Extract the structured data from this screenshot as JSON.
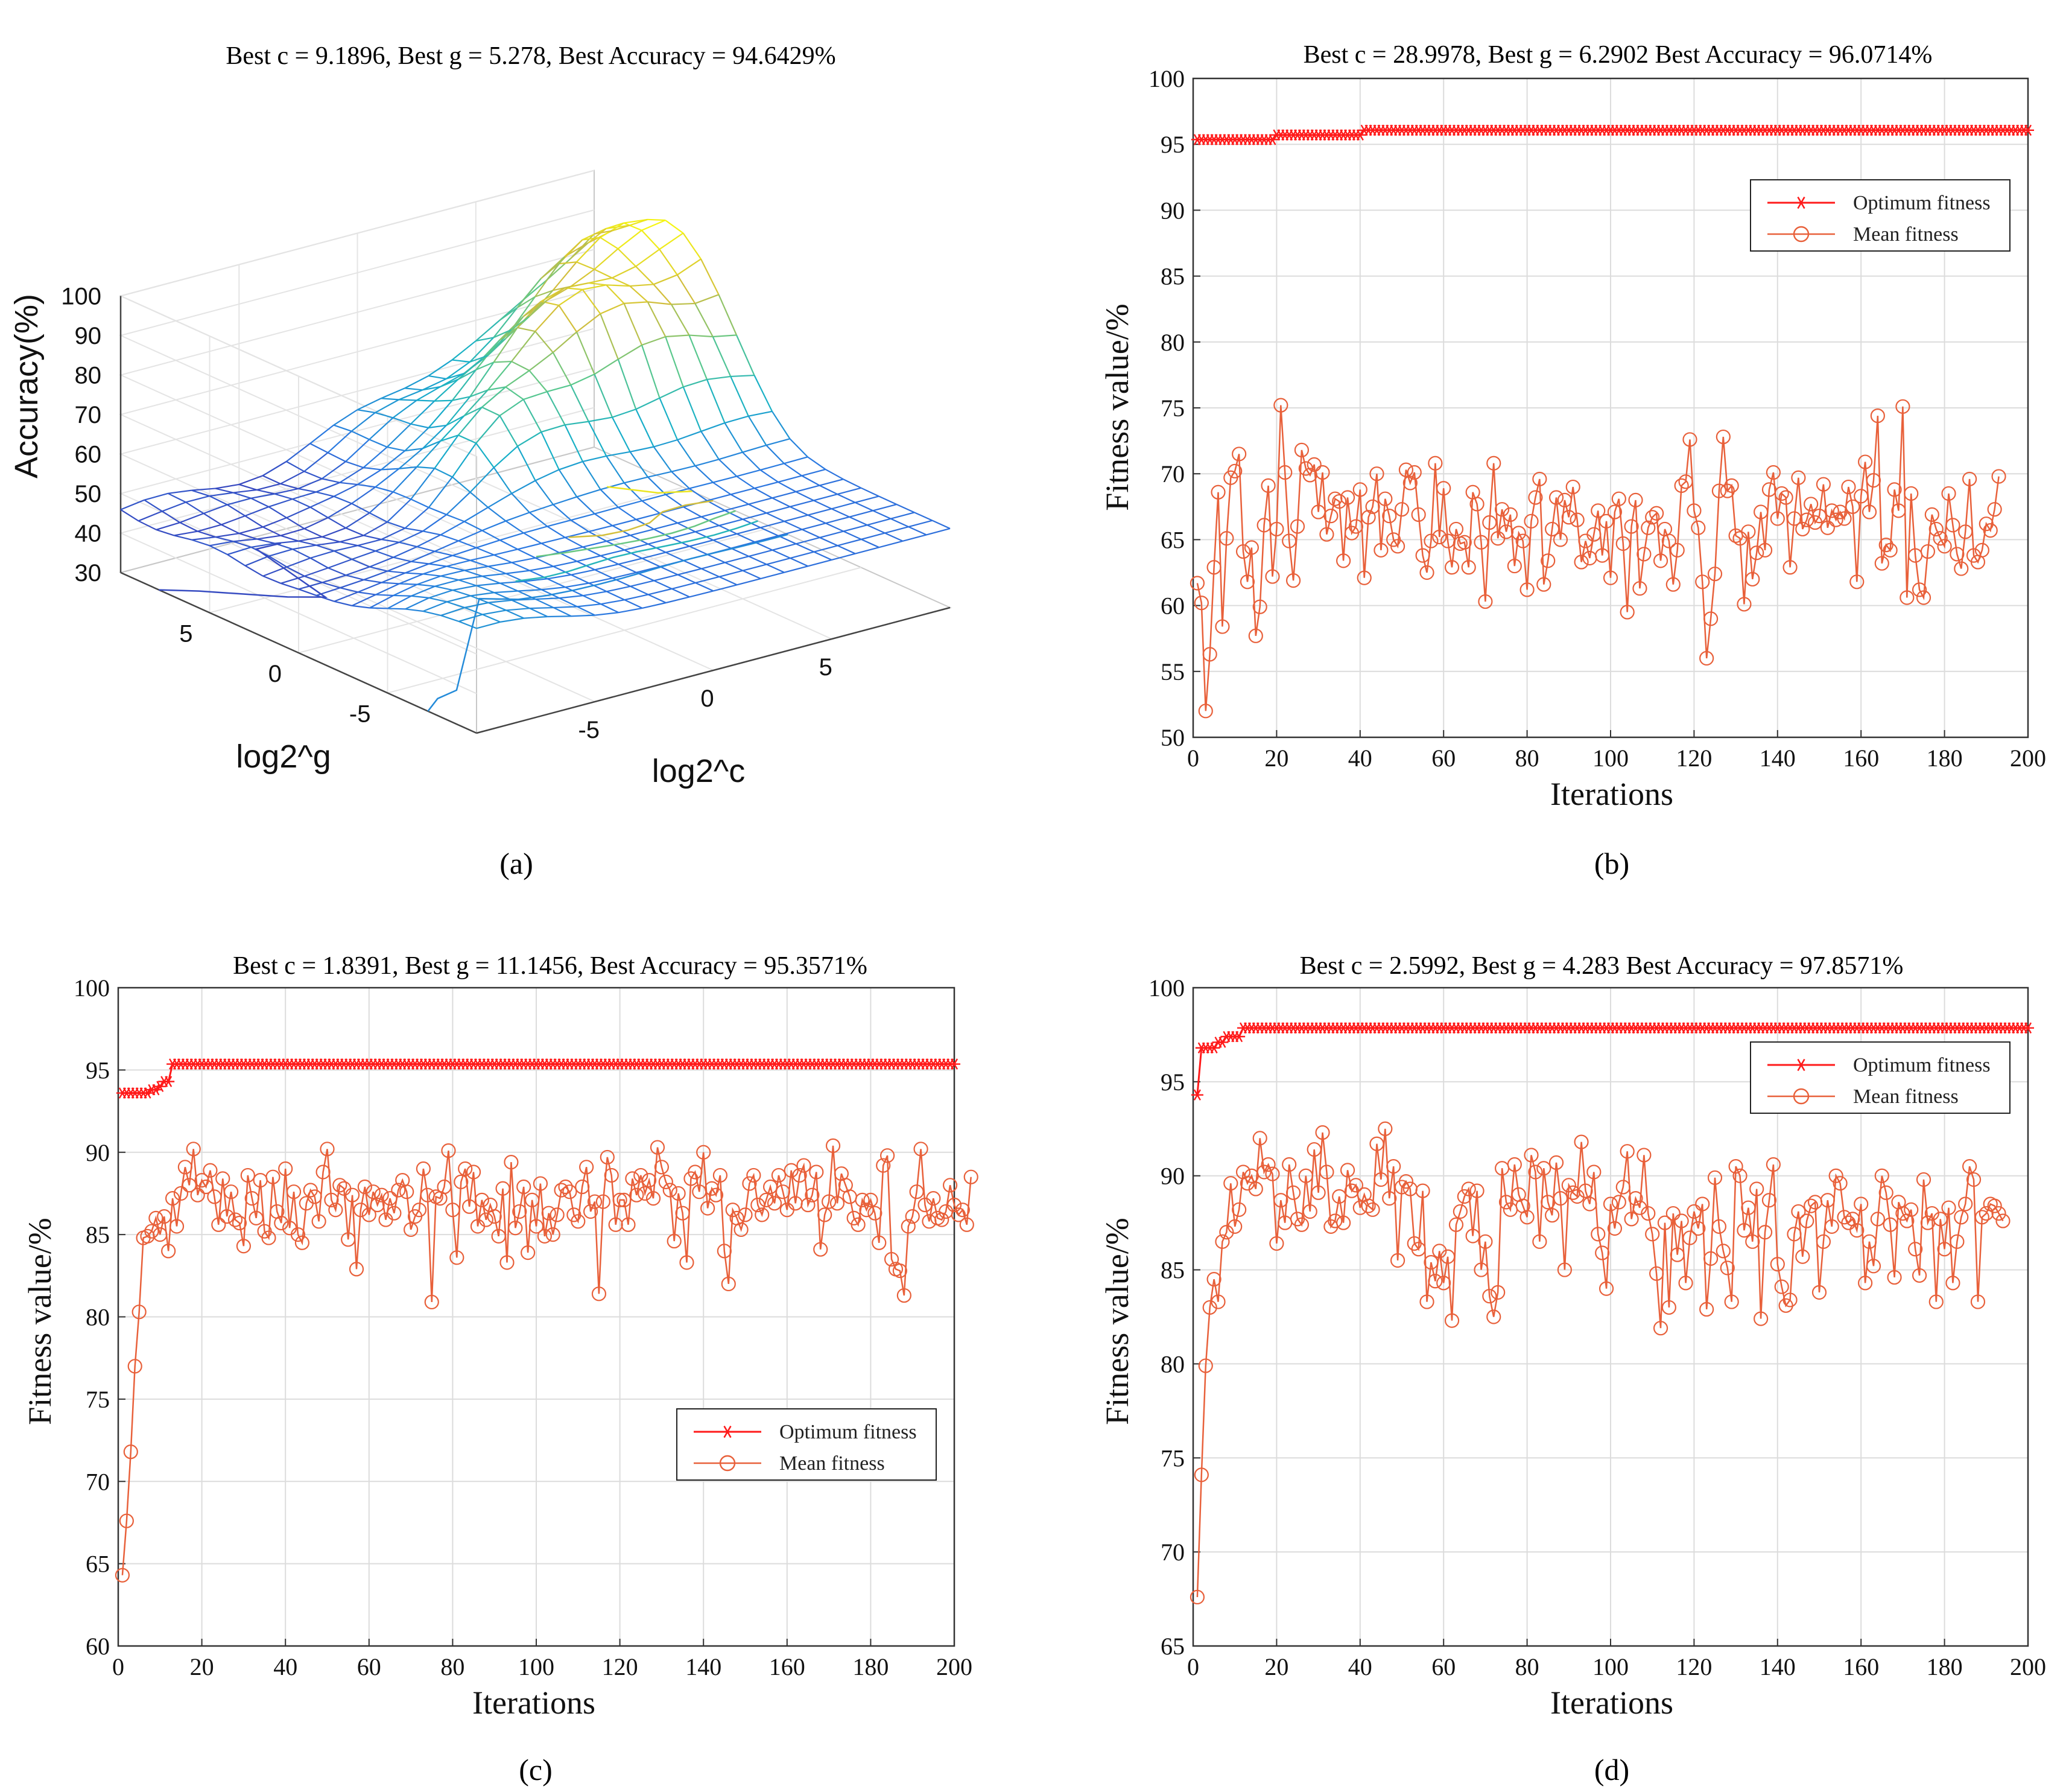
{
  "figure": {
    "captions": [
      "(a)",
      "(b)",
      "(c)",
      "(d)"
    ],
    "colors": {
      "optimum": "#ff1a1a",
      "mean": "#e8603a",
      "grid": "#dcdcdc"
    }
  },
  "chart_data": [
    {
      "id": "a",
      "type": "surface3d",
      "title": "Best c = 9.1896, Best g = 5.278, Best Accuracy = 94.6429%",
      "xlabel": "log2^c",
      "ylabel": "log2^g",
      "zlabel": "Accuracy(%)",
      "x_ticks": [
        "-5",
        "0",
        "5"
      ],
      "y_ticks": [
        "5",
        "0",
        "-5"
      ],
      "z_ticks": [
        "30",
        "40",
        "50",
        "60",
        "70",
        "80",
        "90",
        "100"
      ],
      "xlim": [
        -10,
        10
      ],
      "ylim": [
        -10,
        10
      ],
      "zlim": [
        30,
        100
      ],
      "colormap": "parula"
    },
    {
      "id": "b",
      "type": "line",
      "title": "Best c = 28.9978, Best g = 6.2902 Best Accuracy = 96.0714%",
      "xlabel": "Iterations",
      "ylabel": "Fitness value/%",
      "xlim": [
        0,
        200
      ],
      "ylim": [
        50,
        100
      ],
      "x_ticks": [
        "0",
        "20",
        "40",
        "60",
        "80",
        "100",
        "120",
        "140",
        "160",
        "180",
        "200"
      ],
      "y_ticks": [
        "50",
        "55",
        "60",
        "65",
        "70",
        "75",
        "80",
        "85",
        "90",
        "95",
        "100"
      ],
      "legend": {
        "position": "upper-right",
        "entries": [
          "Optimum fitness",
          "Mean fitness"
        ]
      },
      "series": [
        {
          "name": "Optimum fitness",
          "steps": [
            [
              1,
              95.36
            ],
            [
              20,
              95.71
            ],
            [
              41,
              96.07
            ]
          ]
        },
        {
          "name": "Mean fitness",
          "values": [
            61.7,
            60.2,
            52.0,
            56.3,
            62.9,
            68.6,
            58.4,
            65.1,
            69.7,
            70.2,
            71.5,
            64.1,
            61.8,
            64.4,
            57.7,
            59.9,
            66.1,
            69.1,
            62.2,
            65.8,
            75.2,
            70.1,
            64.9,
            61.9,
            66.0,
            71.8,
            70.4,
            69.9,
            70.7,
            67.1,
            70.1,
            65.4,
            66.8,
            68.1,
            67.9,
            63.4,
            68.2,
            65.5,
            66.0,
            68.8,
            62.1,
            66.7,
            67.5,
            70.0,
            64.2,
            68.1,
            66.8,
            65.0,
            64.5,
            67.3,
            70.3,
            69.3,
            70.1,
            66.9,
            63.8,
            62.5,
            64.9,
            70.8,
            65.2,
            68.9,
            64.9,
            62.9,
            65.8,
            64.7,
            64.8,
            62.9,
            68.6,
            67.7,
            64.8,
            60.3,
            66.3,
            70.8,
            65.1,
            67.3,
            65.6,
            66.9,
            63.0,
            65.5,
            64.9,
            61.2,
            66.4,
            68.2,
            69.6,
            61.6,
            63.4,
            65.8,
            68.2,
            65.0,
            68.0,
            66.7,
            69.0,
            66.5,
            63.3,
            64.9,
            63.6,
            65.4,
            67.2,
            63.8,
            66.4,
            62.1,
            67.1,
            68.1,
            64.7,
            59.5,
            66.0,
            68.0,
            61.3,
            63.9,
            65.9,
            66.7,
            67.0,
            63.4,
            65.8,
            64.9,
            61.6,
            64.2,
            69.1,
            69.4,
            72.6,
            67.2,
            65.9,
            61.8,
            56.0,
            59.0,
            62.4,
            68.7,
            72.8,
            68.7,
            69.1,
            65.3,
            65.1,
            60.1,
            65.6,
            62.0,
            64.0,
            67.1,
            64.2,
            68.8,
            70.1,
            66.6,
            68.5,
            68.2,
            62.9,
            66.6,
            69.7,
            65.8,
            66.5,
            67.7,
            66.3,
            66.8,
            69.2,
            65.9,
            67.2,
            66.5,
            67.1,
            66.6,
            69.0,
            67.5,
            61.8,
            68.3,
            70.9,
            67.1,
            69.5,
            74.4,
            63.2,
            64.6,
            64.2,
            68.8,
            67.2,
            75.1,
            60.6,
            68.5,
            63.8,
            61.2,
            60.6,
            64.1,
            66.9,
            65.8,
            65.1,
            64.5,
            68.5,
            66.1,
            63.9,
            62.8,
            65.6,
            69.6,
            63.8,
            63.3,
            64.2,
            66.2,
            65.7,
            67.3,
            69.8
          ]
        }
      ]
    },
    {
      "id": "c",
      "type": "line",
      "title": "Best c = 1.8391, Best g = 11.1456, Best Accuracy = 95.3571%",
      "xlabel": "Iterations",
      "ylabel": "Fitness value/%",
      "xlim": [
        0,
        200
      ],
      "ylim": [
        60,
        100
      ],
      "x_ticks": [
        "0",
        "20",
        "40",
        "60",
        "80",
        "100",
        "120",
        "140",
        "160",
        "180",
        "200"
      ],
      "y_ticks": [
        "60",
        "65",
        "70",
        "75",
        "80",
        "85",
        "90",
        "95",
        "100"
      ],
      "legend": {
        "position": "lower-right",
        "entries": [
          "Optimum fitness",
          "Mean fitness"
        ]
      },
      "series": [
        {
          "name": "Optimum fitness",
          "steps": [
            [
              1,
              93.6
            ],
            [
              8,
              93.8
            ],
            [
              10,
              94.0
            ],
            [
              11,
              94.3
            ],
            [
              13,
              95.36
            ]
          ]
        },
        {
          "name": "Mean fitness",
          "values": [
            64.3,
            67.6,
            71.8,
            77.0,
            80.3,
            84.8,
            84.9,
            85.2,
            86.0,
            85.0,
            86.1,
            84.0,
            87.2,
            85.5,
            87.5,
            89.1,
            88.0,
            90.2,
            87.4,
            88.3,
            87.9,
            88.9,
            87.3,
            85.6,
            88.4,
            86.1,
            87.6,
            85.9,
            85.7,
            84.3,
            88.6,
            87.2,
            86.0,
            88.3,
            85.2,
            84.8,
            88.5,
            86.4,
            85.7,
            89.0,
            85.4,
            87.6,
            85.0,
            84.5,
            86.9,
            87.7,
            87.3,
            85.8,
            88.8,
            90.2,
            87.1,
            86.5,
            88.0,
            87.8,
            84.7,
            87.4,
            82.9,
            86.5,
            87.9,
            86.2,
            87.6,
            86.8,
            87.4,
            85.9,
            87.2,
            86.3,
            87.7,
            88.3,
            87.6,
            85.3,
            86.1,
            86.5,
            89.0,
            87.4,
            80.9,
            87.3,
            87.2,
            87.9,
            90.1,
            86.5,
            83.6,
            88.2,
            89.0,
            86.7,
            88.8,
            85.5,
            87.1,
            85.9,
            86.8,
            86.1,
            84.9,
            87.8,
            83.3,
            89.4,
            85.4,
            86.4,
            87.9,
            83.9,
            87.1,
            85.5,
            88.1,
            84.9,
            86.3,
            85.0,
            86.2,
            87.7,
            87.9,
            87.6,
            86.2,
            85.8,
            87.9,
            89.1,
            86.4,
            87.0,
            81.4,
            87.0,
            89.7,
            88.6,
            85.6,
            87.1,
            87.1,
            85.6,
            88.4,
            87.4,
            88.6,
            87.5,
            88.3,
            87.2,
            90.3,
            89.1,
            88.2,
            87.7,
            84.6,
            87.5,
            86.3,
            83.3,
            88.4,
            88.8,
            87.6,
            90.0,
            86.6,
            87.8,
            87.4,
            88.6,
            84.0,
            82.0,
            86.5,
            86.0,
            85.3,
            86.2,
            88.1,
            88.6,
            86.8,
            86.2,
            87.1,
            87.9,
            86.9,
            88.6,
            87.6,
            86.5,
            88.9,
            86.9,
            88.6,
            89.2,
            86.8,
            87.4,
            88.8,
            84.1,
            86.2,
            87.0,
            90.4,
            86.9,
            88.7,
            88.0,
            87.3,
            86.0,
            85.6,
            87.1,
            86.5,
            87.1,
            86.3,
            84.5,
            89.2,
            89.8,
            83.5,
            82.9,
            82.8,
            81.3,
            85.5,
            86.1,
            87.6,
            90.2,
            86.8,
            85.8,
            87.2,
            86.0,
            85.9,
            86.4,
            88.0,
            86.8,
            86.2,
            86.5,
            85.6,
            88.5
          ]
        }
      ]
    },
    {
      "id": "d",
      "type": "line",
      "title": "Best c = 2.5992, Best g = 4.283 Best Accuracy = 97.8571%",
      "xlabel": "Iterations",
      "ylabel": "Fitness value/%",
      "xlim": [
        0,
        200
      ],
      "ylim": [
        65,
        100
      ],
      "x_ticks": [
        "0",
        "20",
        "40",
        "60",
        "80",
        "100",
        "120",
        "140",
        "160",
        "180",
        "200"
      ],
      "y_ticks": [
        "65",
        "70",
        "75",
        "80",
        "85",
        "90",
        "95",
        "100"
      ],
      "legend": {
        "position": "upper-right",
        "entries": [
          "Optimum fitness",
          "Mean fitness"
        ]
      },
      "series": [
        {
          "name": "Optimum fitness",
          "steps": [
            [
              1,
              94.3
            ],
            [
              2,
              96.8
            ],
            [
              6,
              97.1
            ],
            [
              8,
              97.4
            ],
            [
              12,
              97.86
            ]
          ]
        },
        {
          "name": "Mean fitness",
          "values": [
            67.6,
            74.1,
            79.9,
            83.0,
            84.5,
            83.3,
            86.5,
            87.0,
            89.6,
            87.3,
            88.2,
            90.2,
            89.6,
            90.0,
            89.3,
            92.0,
            90.2,
            90.6,
            90.1,
            86.4,
            88.7,
            87.5,
            90.6,
            89.1,
            87.7,
            87.4,
            90.0,
            88.1,
            91.4,
            89.1,
            92.3,
            90.2,
            87.3,
            87.6,
            88.9,
            87.5,
            90.3,
            89.2,
            89.5,
            88.3,
            89.0,
            88.4,
            88.2,
            91.7,
            89.8,
            92.5,
            88.8,
            90.5,
            85.5,
            89.4,
            89.7,
            89.3,
            86.4,
            86.1,
            89.2,
            83.3,
            85.4,
            84.4,
            86.0,
            84.3,
            85.7,
            82.3,
            87.4,
            88.1,
            88.9,
            89.3,
            86.8,
            89.2,
            85.0,
            86.5,
            83.6,
            82.5,
            83.8,
            90.4,
            88.6,
            88.2,
            90.6,
            89.0,
            88.4,
            87.8,
            91.1,
            90.2,
            86.5,
            90.4,
            88.6,
            87.9,
            90.7,
            88.8,
            85.0,
            89.5,
            89.1,
            88.9,
            91.8,
            89.2,
            88.5,
            90.2,
            86.9,
            85.9,
            84.0,
            88.5,
            87.2,
            88.6,
            89.4,
            91.3,
            87.7,
            88.8,
            88.3,
            91.1,
            88.0,
            86.9,
            84.8,
            81.9,
            87.5,
            83.0,
            88.0,
            85.8,
            87.6,
            84.3,
            86.7,
            88.1,
            87.2,
            88.5,
            82.9,
            85.6,
            89.9,
            87.3,
            86.0,
            85.1,
            83.3,
            90.5,
            90.0,
            87.1,
            88.3,
            86.5,
            89.3,
            82.4,
            87.0,
            88.7,
            90.6,
            85.3,
            84.1,
            83.1,
            83.4,
            86.9,
            88.1,
            85.7,
            87.6,
            88.4,
            88.6,
            83.8,
            86.5,
            88.7,
            87.3,
            90.0,
            89.6,
            87.8,
            87.5,
            87.7,
            87.1,
            88.5,
            84.3,
            86.5,
            85.2,
            87.7,
            90.0,
            89.1,
            87.4,
            84.6,
            88.6,
            88.0,
            87.6,
            88.2,
            86.1,
            84.7,
            89.8,
            87.5,
            88.0,
            83.3,
            87.7,
            86.1,
            88.3,
            84.3,
            86.5,
            87.8,
            88.5,
            90.5,
            89.8,
            83.3,
            87.8,
            88.0,
            88.5,
            88.4,
            88.0,
            87.6
          ]
        }
      ]
    }
  ]
}
